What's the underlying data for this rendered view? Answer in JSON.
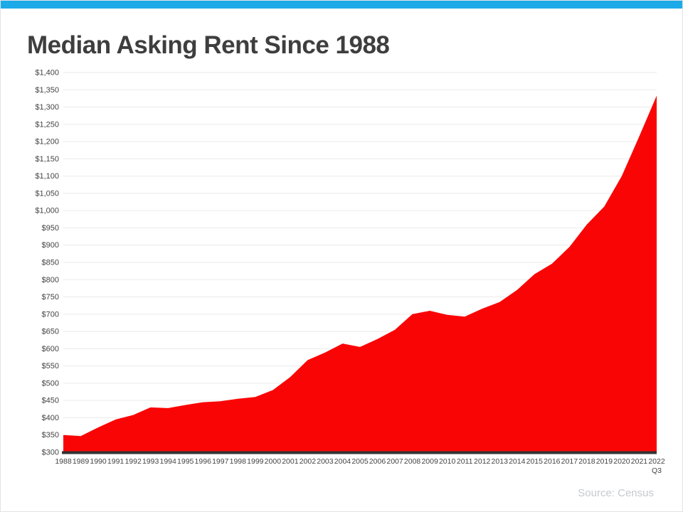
{
  "title": "Median Asking Rent Since 1988",
  "source": "Source: Census",
  "colors": {
    "accent_bar": "#1CAAE9",
    "area": "#FA0505",
    "baseline": "#333333",
    "title": "#3E3E3E",
    "tick_label": "#444444",
    "grid": "#EAEAEA",
    "source_text": "#C5CACD"
  },
  "chart_data": {
    "type": "area",
    "title": "Median Asking Rent Since 1988",
    "categories": [
      "1988",
      "1989",
      "1990",
      "1991",
      "1992",
      "1993",
      "1994",
      "1995",
      "1996",
      "1997",
      "1998",
      "1999",
      "2000",
      "2001",
      "2002",
      "2003",
      "2004",
      "2005",
      "2006",
      "2007",
      "2008",
      "2009",
      "2010",
      "2011",
      "2012",
      "2013",
      "2014",
      "2015",
      "2016",
      "2017",
      "2018",
      "2019",
      "2020",
      "2021",
      "2022"
    ],
    "x_last_sub_label": "Q3",
    "values": [
      350,
      347,
      372,
      395,
      408,
      430,
      428,
      437,
      445,
      448,
      455,
      460,
      480,
      518,
      567,
      589,
      615,
      605,
      628,
      655,
      700,
      710,
      698,
      693,
      716,
      735,
      770,
      816,
      846,
      895,
      960,
      1012,
      1100,
      1215,
      1333
    ],
    "ylabel_format": "$#,###",
    "currency_prefix": "$",
    "ylim": [
      300,
      1400
    ],
    "ytick_step": 50,
    "grid": true,
    "legend": "none",
    "xlabel": "",
    "ylabel": ""
  }
}
